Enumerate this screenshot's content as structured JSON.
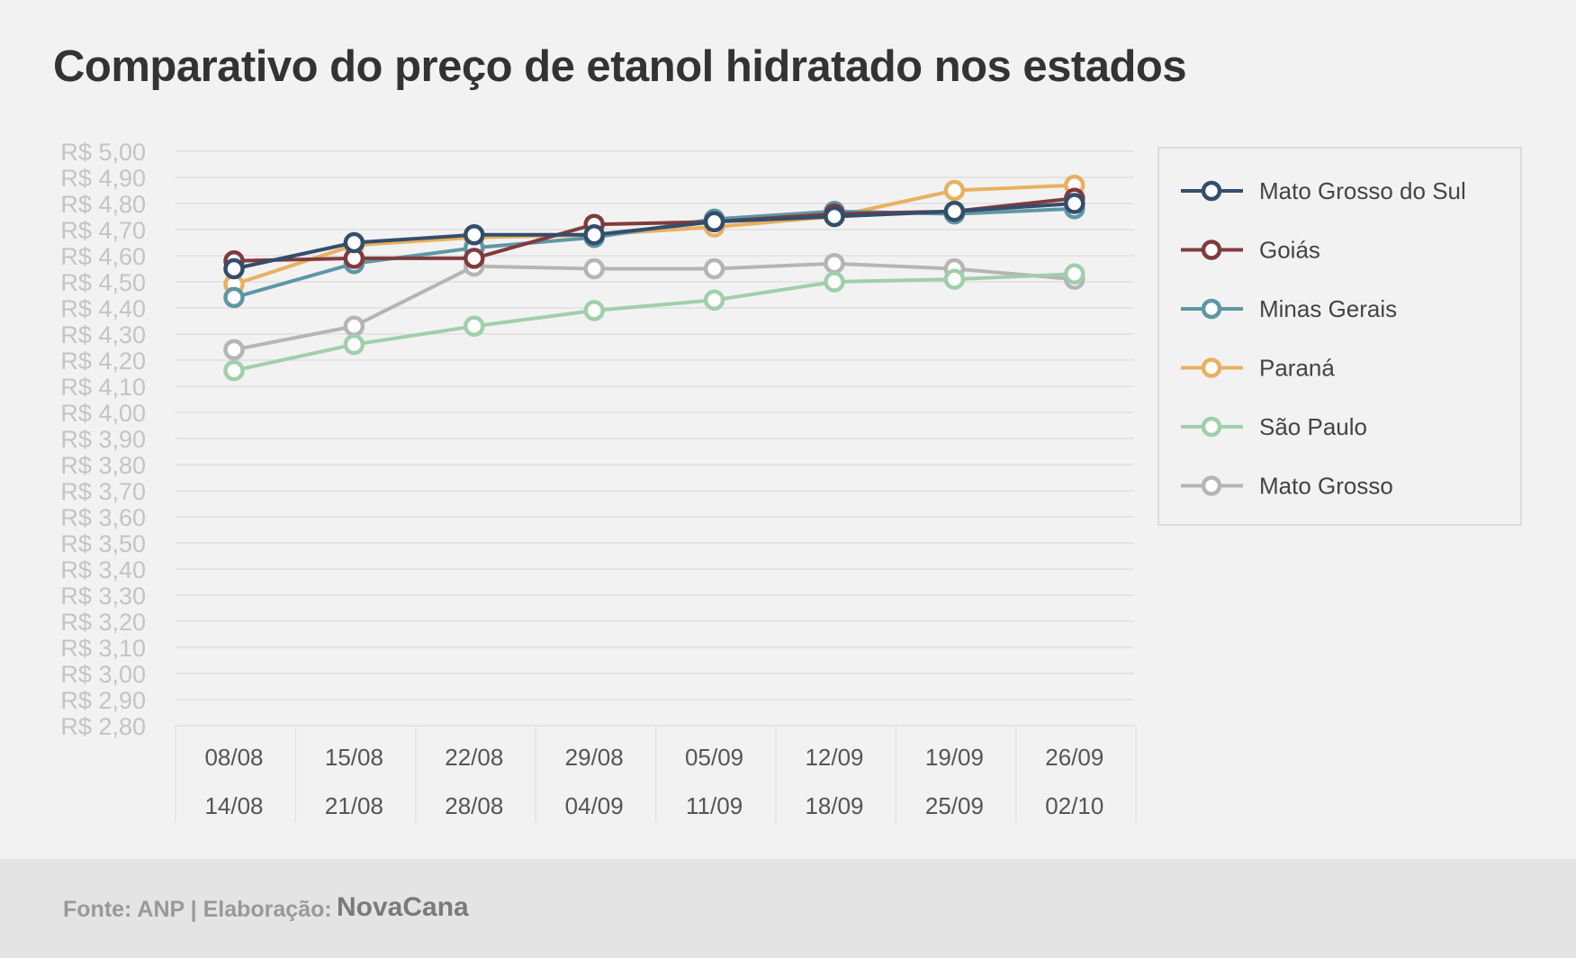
{
  "chart_data": {
    "type": "line",
    "title": "Comparativo do preço de etanol hidratado nos estados",
    "categories": [
      [
        "08/08",
        "14/08"
      ],
      [
        "15/08",
        "21/08"
      ],
      [
        "22/08",
        "28/08"
      ],
      [
        "29/08",
        "04/09"
      ],
      [
        "05/09",
        "11/09"
      ],
      [
        "12/09",
        "18/09"
      ],
      [
        "19/09",
        "25/09"
      ],
      [
        "26/09",
        "02/10"
      ]
    ],
    "y_ticks": [
      "R$ 2,80",
      "R$ 2,90",
      "R$ 3,00",
      "R$ 3,10",
      "R$ 3,20",
      "R$ 3,30",
      "R$ 3,40",
      "R$ 3,50",
      "R$ 3,60",
      "R$ 3,70",
      "R$ 3,80",
      "R$ 3,90",
      "R$ 4,00",
      "R$ 4,10",
      "R$ 4,20",
      "R$ 4,30",
      "R$ 4,40",
      "R$ 4,50",
      "R$ 4,60",
      "R$ 4,70",
      "R$ 4,80",
      "R$ 4,90",
      "R$ 5,00"
    ],
    "ylim": [
      2.8,
      5.0
    ],
    "grid": true,
    "legend_position": "right",
    "series": [
      {
        "name": "Mato Grosso",
        "color": "#b5b5b5",
        "values": [
          4.24,
          4.33,
          4.56,
          4.55,
          4.55,
          4.57,
          4.55,
          4.51
        ]
      },
      {
        "name": "São Paulo",
        "color": "#9fcfab",
        "values": [
          4.16,
          4.26,
          4.33,
          4.39,
          4.43,
          4.5,
          4.51,
          4.53
        ]
      },
      {
        "name": "Paraná",
        "color": "#e8b060",
        "values": [
          4.49,
          4.64,
          4.67,
          4.68,
          4.71,
          4.75,
          4.85,
          4.87
        ]
      },
      {
        "name": "Minas Gerais",
        "color": "#5e97a3",
        "values": [
          4.44,
          4.57,
          4.63,
          4.67,
          4.74,
          4.77,
          4.76,
          4.78
        ]
      },
      {
        "name": "Goiás",
        "color": "#803b3e",
        "values": [
          4.58,
          4.59,
          4.59,
          4.72,
          4.73,
          4.76,
          4.77,
          4.82
        ]
      },
      {
        "name": "Mato Grosso do Sul",
        "color": "#344d6c",
        "values": [
          4.55,
          4.65,
          4.68,
          4.68,
          4.73,
          4.75,
          4.77,
          4.8
        ]
      }
    ],
    "legend_order": [
      "Mato Grosso do Sul",
      "Goiás",
      "Minas Gerais",
      "Paraná",
      "São Paulo",
      "Mato Grosso"
    ]
  },
  "footer": {
    "source": "Fonte: ANP | Elaboração:",
    "brand": "NovaCana"
  }
}
